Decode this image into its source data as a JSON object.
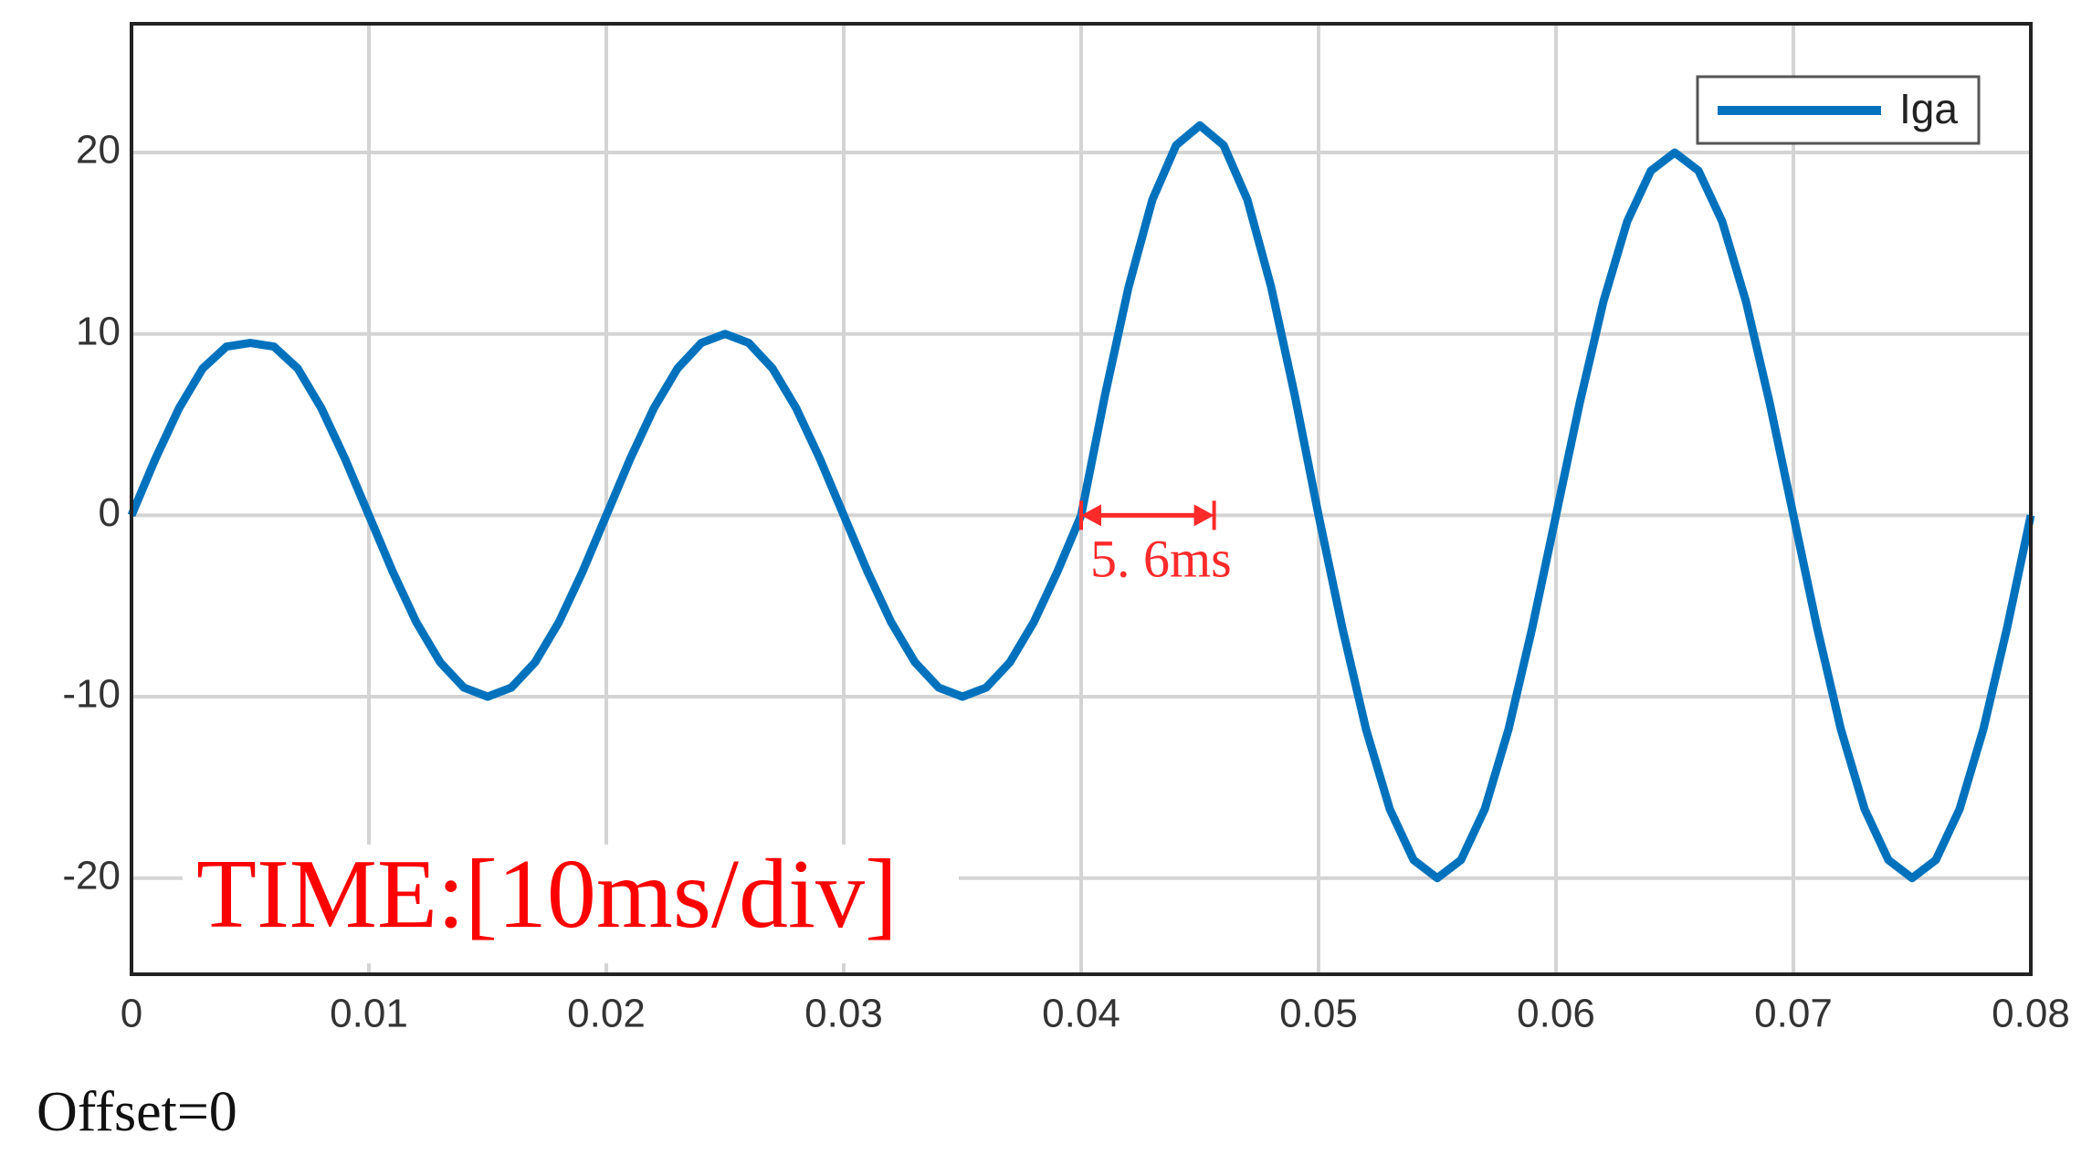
{
  "chart_data": {
    "type": "line",
    "x": [
      0,
      0.001,
      0.002,
      0.003,
      0.004,
      0.005,
      0.006,
      0.007,
      0.008,
      0.009,
      0.01,
      0.011,
      0.012,
      0.013,
      0.014,
      0.015,
      0.016,
      0.017,
      0.018,
      0.019,
      0.02,
      0.021,
      0.022,
      0.023,
      0.024,
      0.025,
      0.026,
      0.027,
      0.028,
      0.029,
      0.03,
      0.031,
      0.032,
      0.033,
      0.034,
      0.035,
      0.036,
      0.037,
      0.038,
      0.039,
      0.04,
      0.041,
      0.042,
      0.043,
      0.044,
      0.045,
      0.046,
      0.047,
      0.048,
      0.049,
      0.05,
      0.051,
      0.052,
      0.053,
      0.054,
      0.055,
      0.056,
      0.057,
      0.058,
      0.059,
      0.06,
      0.061,
      0.062,
      0.063,
      0.064,
      0.065,
      0.066,
      0.067,
      0.068,
      0.069,
      0.07,
      0.071,
      0.072,
      0.073,
      0.074,
      0.075,
      0.076,
      0.077,
      0.078,
      0.079,
      0.08
    ],
    "series": [
      {
        "name": "Iga",
        "color": "#0072bd",
        "values": [
          0,
          3.1,
          5.9,
          8.1,
          9.3,
          9.5,
          9.3,
          8.1,
          5.9,
          3.1,
          0,
          -3.1,
          -5.9,
          -8.1,
          -9.5,
          -10,
          -9.5,
          -8.1,
          -5.9,
          -3.1,
          0,
          3.1,
          5.9,
          8.1,
          9.5,
          10,
          9.5,
          8.1,
          5.9,
          3.1,
          0,
          -3.1,
          -5.9,
          -8.1,
          -9.5,
          -10,
          -9.5,
          -8.1,
          -5.9,
          -3.1,
          0,
          6.6,
          12.6,
          17.4,
          20.4,
          21.5,
          20.4,
          17.4,
          12.6,
          6.6,
          0,
          -6.2,
          -11.8,
          -16.2,
          -19,
          -20,
          -19,
          -16.2,
          -11.8,
          -6.2,
          0,
          6.2,
          11.8,
          16.2,
          19,
          20,
          19,
          16.2,
          11.8,
          6.2,
          0,
          -6.2,
          -11.8,
          -16.2,
          -19,
          -20,
          -19,
          -16.2,
          -11.8,
          -6.2,
          0
        ]
      }
    ],
    "xlim": [
      0,
      0.08
    ],
    "xticks": [
      0,
      0.01,
      0.02,
      0.03,
      0.04,
      0.05,
      0.06,
      0.07,
      0.08
    ],
    "ylim": [
      -25.3,
      27.1
    ],
    "yticks": [
      -20,
      -10,
      0,
      10,
      20
    ],
    "grid": true,
    "legend": "upper right",
    "annotations": [
      {
        "text": "5. 6ms",
        "x": [
          0.04,
          0.0456
        ],
        "y": 0,
        "color": "#ff2a2a"
      },
      {
        "text": "TIME:[10ms/div]",
        "color": "#ff0000"
      }
    ],
    "footnote": "Offset=0"
  }
}
